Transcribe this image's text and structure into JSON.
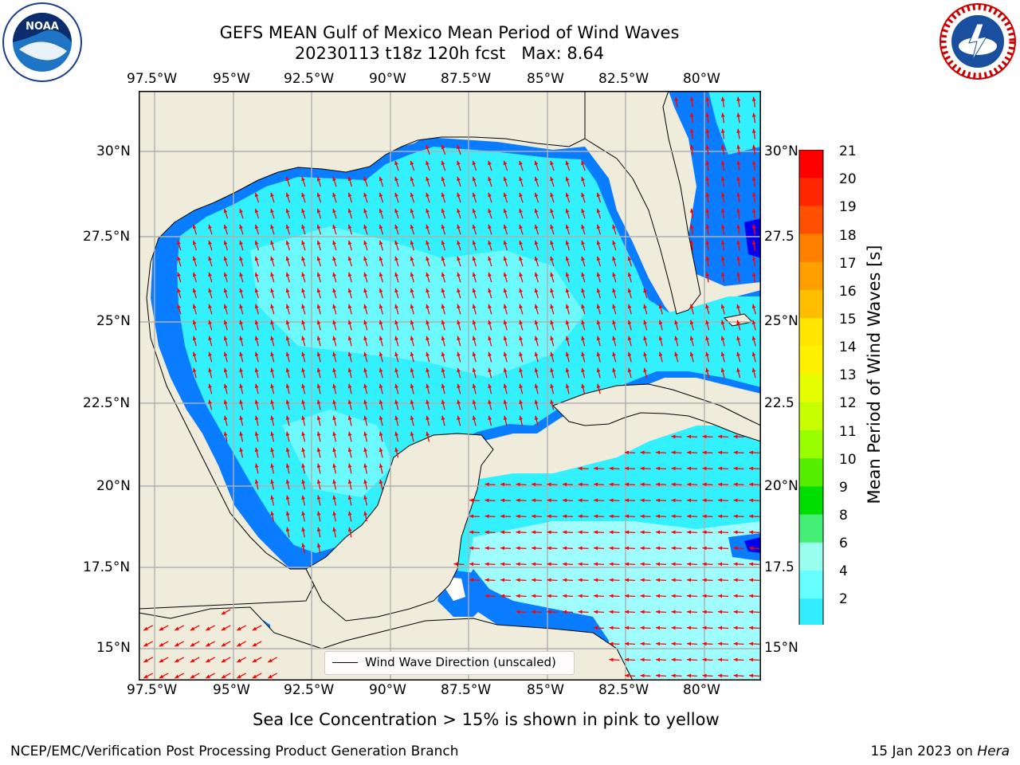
{
  "title": {
    "line1": "GEFS MEAN Gulf of Mexico Mean Period of Wind Waves",
    "line2": "20230113 t18z 120h fcst   Max: 8.64"
  },
  "logos": {
    "left": "NOAA",
    "right": "NATIONAL WEATHER SERVICE"
  },
  "map": {
    "lon_ticks": [
      "97.5°W",
      "95°W",
      "92.5°W",
      "90°W",
      "87.5°W",
      "85°W",
      "82.5°W",
      "80°W"
    ],
    "lat_ticks_left": [
      "30°N",
      "27.5°N",
      "25°N",
      "22.5°N",
      "20°N",
      "17.5°N",
      "15°N"
    ],
    "lat_ticks_right": [
      "30°N",
      "27.5",
      "25°N",
      "22.5",
      "20°N",
      "17.5",
      "15°N"
    ],
    "legend": "Wind Wave Direction (unscaled)",
    "land_color": "#efecdc",
    "arrow_color": "#ff0000"
  },
  "colorbar": {
    "label": "Mean Period of Wind Waves [s]",
    "ticks": [
      "21",
      "20",
      "19",
      "18",
      "17",
      "16",
      "15",
      "14",
      "13",
      "12",
      "11",
      "10",
      "9",
      "8",
      "6",
      "4",
      "2"
    ],
    "colors_top_to_bottom": [
      "#ff0000",
      "#ff2600",
      "#ff5000",
      "#ff7f00",
      "#ff9f00",
      "#ffbf00",
      "#ffe600",
      "#fff200",
      "#e6ff00",
      "#c8ff00",
      "#99ff00",
      "#55ee00",
      "#00dd00",
      "#44ee77",
      "#99ffee",
      "#66ffff",
      "#33eeff",
      "#00e5ff",
      "#00a5ff",
      "#0000ff"
    ]
  },
  "caption": "Sea Ice Concentration > 15% is shown in pink to yellow",
  "footer": {
    "left": "NCEP/EMC/Verification Post Processing Product Generation Branch",
    "right_date": "15 Jan 2023 on ",
    "right_host": "Hera"
  }
}
